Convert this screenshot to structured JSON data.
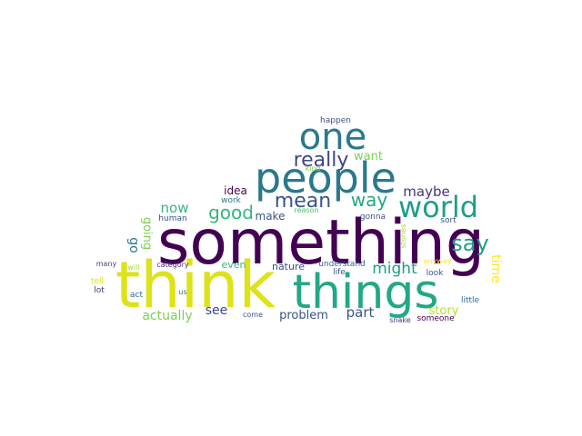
{
  "words": [
    {
      "text": "something",
      "color": "#440154"
    },
    {
      "text": "think",
      "color": "#dde318"
    },
    {
      "text": "things",
      "color": "#22a884"
    },
    {
      "text": "people",
      "color": "#2a788e"
    },
    {
      "text": "one",
      "color": "#2a788e"
    },
    {
      "text": "world",
      "color": "#1f9e89"
    },
    {
      "text": "really",
      "color": "#414487"
    },
    {
      "text": "mean",
      "color": "#3b528b"
    },
    {
      "text": "way",
      "color": "#22a884"
    },
    {
      "text": "say",
      "color": "#1f9e89"
    },
    {
      "text": "good",
      "color": "#35b779"
    },
    {
      "text": "might",
      "color": "#1f9e89"
    },
    {
      "text": "maybe",
      "color": "#46327e"
    },
    {
      "text": "want",
      "color": "#7ad151"
    },
    {
      "text": "idea",
      "color": "#440154"
    },
    {
      "text": "now",
      "color": "#35b779"
    },
    {
      "text": "make",
      "color": "#3b528b"
    },
    {
      "text": "going",
      "color": "#7ad151"
    },
    {
      "text": "go",
      "color": "#2a788e"
    },
    {
      "text": "see",
      "color": "#414487"
    },
    {
      "text": "actually",
      "color": "#7ad151"
    },
    {
      "text": "problem",
      "color": "#3b528b"
    },
    {
      "text": "part",
      "color": "#3b528b"
    },
    {
      "text": "story",
      "color": "#b5de2b"
    },
    {
      "text": "time",
      "color": "#fde725"
    },
    {
      "text": "nature",
      "color": "#3b528b"
    },
    {
      "text": "even",
      "color": "#35b779"
    },
    {
      "text": "happen",
      "color": "#3b528b"
    },
    {
      "text": "kind",
      "color": "#7ad151"
    },
    {
      "text": "work",
      "color": "#2a788e"
    },
    {
      "text": "reason",
      "color": "#4ac16d"
    },
    {
      "text": "human",
      "color": "#3b528b"
    },
    {
      "text": "gonna",
      "color": "#3b528b"
    },
    {
      "text": "stories",
      "color": "#a0da39"
    },
    {
      "text": "sort",
      "color": "#3b528b"
    },
    {
      "text": "many",
      "color": "#414487"
    },
    {
      "text": "will",
      "color": "#a0da39"
    },
    {
      "text": "category",
      "color": "#46327e"
    },
    {
      "text": "understand",
      "color": "#31688e"
    },
    {
      "text": "anyway",
      "color": "#fde725"
    },
    {
      "text": "tell",
      "color": "#dde318"
    },
    {
      "text": "lot",
      "color": "#46327e"
    },
    {
      "text": "life",
      "color": "#3b528b"
    },
    {
      "text": "look",
      "color": "#3b528b"
    },
    {
      "text": "act",
      "color": "#31688e"
    },
    {
      "text": "us",
      "color": "#2a788e"
    },
    {
      "text": "little",
      "color": "#31688e"
    },
    {
      "text": "come",
      "color": "#3b528b"
    },
    {
      "text": "snake",
      "color": "#46327e"
    },
    {
      "text": "someone",
      "color": "#440154"
    }
  ]
}
